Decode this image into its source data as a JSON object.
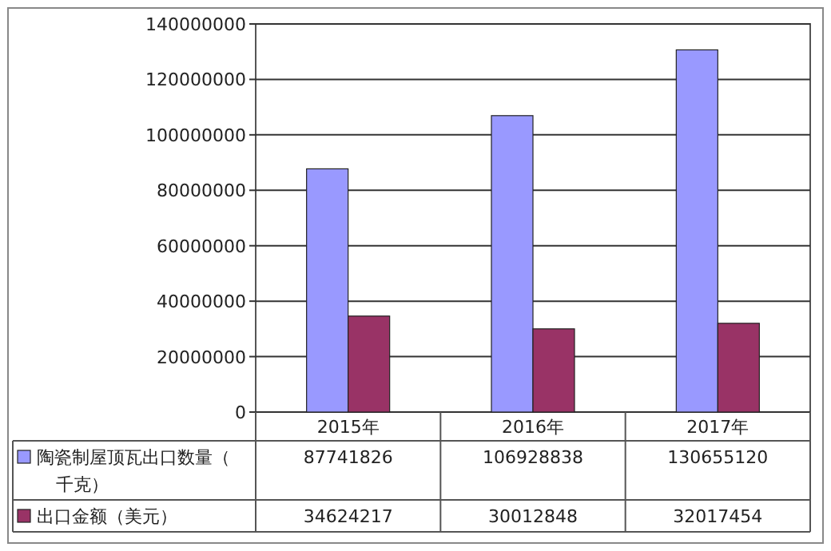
{
  "chart_data": {
    "type": "bar",
    "categories": [
      "2015年",
      "2016年",
      "2017年"
    ],
    "series": [
      {
        "name": "陶瓷制屋顶瓦出口数量（千克）",
        "color": "#9999ff",
        "values": [
          87741826,
          106928838,
          130655120
        ]
      },
      {
        "name": "出口金额（美元）",
        "color": "#993366",
        "values": [
          34624217,
          30012848,
          32017454
        ]
      }
    ],
    "ylim": [
      0,
      140000000
    ],
    "yticks": [
      0,
      20000000,
      40000000,
      60000000,
      80000000,
      100000000,
      120000000,
      140000000
    ],
    "grid": "y",
    "legend": "bottom",
    "data_labels": true
  }
}
